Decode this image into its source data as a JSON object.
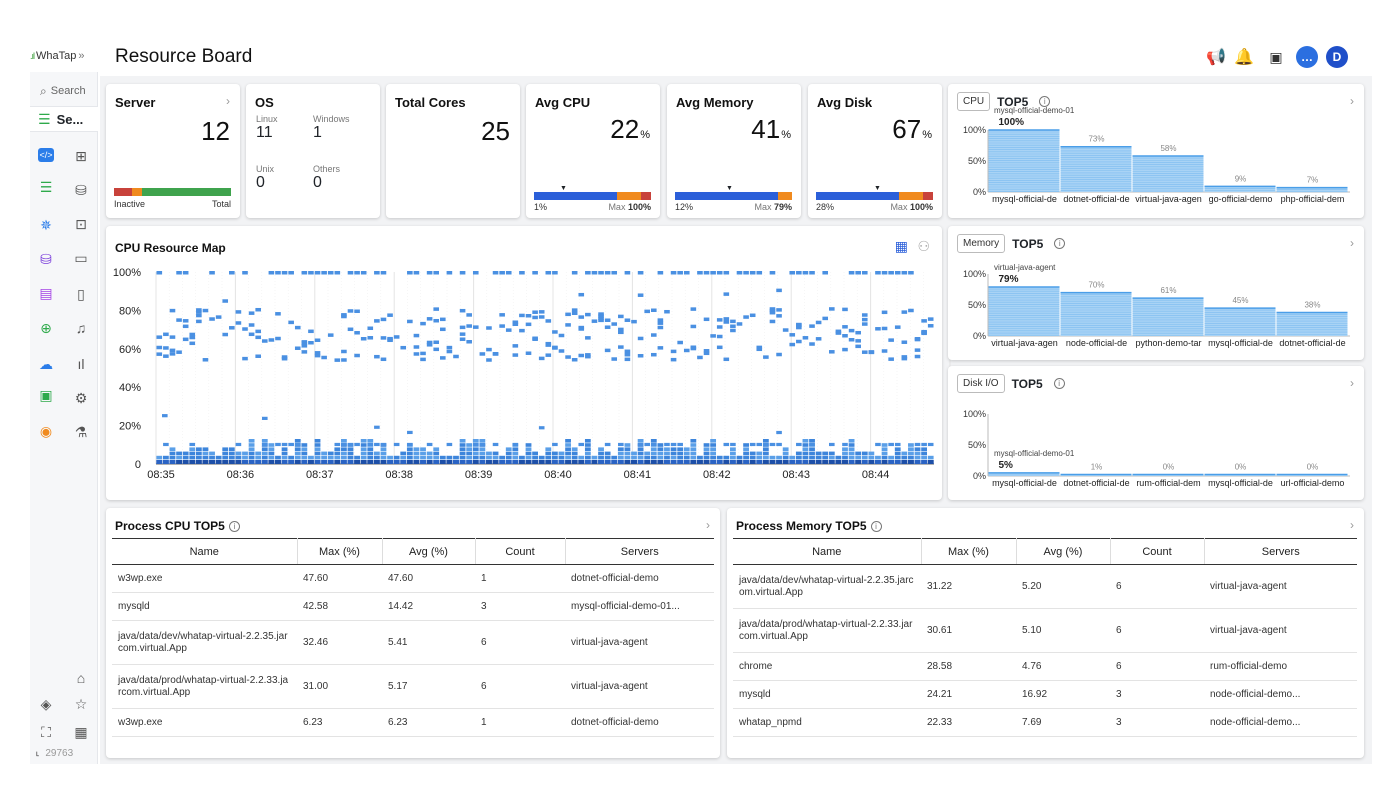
{
  "app": {
    "brand": "WhaTap",
    "collapse_icon": "double-chevron-right",
    "page_title": "Resource Board"
  },
  "sidebar": {
    "search_label": "Search",
    "selected": "Se...",
    "left_icons": [
      "code-icon",
      "server-icon",
      "kubernetes-icon",
      "database-icon",
      "document-icon",
      "globe-icon",
      "cloud-icon",
      "calendar-icon",
      "radio-icon"
    ],
    "right_icons": [
      "grid-icon",
      "database-outline-icon",
      "chart-box-icon",
      "clipboard-icon",
      "file-icon",
      "bell-icon",
      "bar-chart-icon",
      "settings-icon",
      "flask-icon"
    ],
    "bottom_right_icons": [
      "home-icon",
      "star-icon",
      "report-icon"
    ],
    "bottom_left_icons": [
      "paint-bucket-icon",
      "fullscreen-icon"
    ],
    "footer_id": "29763"
  },
  "topbar": {
    "icons": [
      "megaphone-icon",
      "bell-icon",
      "calendar-icon",
      "chat-icon"
    ],
    "avatar_letter": "D"
  },
  "summary": {
    "server": {
      "title": "Server",
      "value": "12",
      "inactive_label": "Inactive",
      "total_label": "Total"
    },
    "os": {
      "title": "OS",
      "linux_label": "Linux",
      "linux": "11",
      "windows_label": "Windows",
      "windows": "1",
      "unix_label": "Unix",
      "unix": "0",
      "others_label": "Others",
      "others": "0"
    },
    "cores": {
      "title": "Total Cores",
      "value": "25"
    },
    "cpu": {
      "title": "Avg CPU",
      "value": "22",
      "unit": "%",
      "min": "1%",
      "max_label": "Max",
      "max": "100%"
    },
    "memory": {
      "title": "Avg Memory",
      "value": "41",
      "unit": "%",
      "min": "12%",
      "max_label": "Max",
      "max": "79%"
    },
    "disk": {
      "title": "Avg Disk",
      "value": "67",
      "unit": "%",
      "min": "28%",
      "max_label": "Max",
      "max": "100%"
    }
  },
  "resource_map": {
    "title": "CPU Resource Map",
    "y_ticks": [
      "100%",
      "80%",
      "60%",
      "40%",
      "20%",
      "0"
    ],
    "x_ticks": [
      "08:35",
      "08:36",
      "08:37",
      "08:38",
      "08:39",
      "08:40",
      "08:41",
      "08:42",
      "08:43",
      "08:44"
    ]
  },
  "top5": [
    {
      "tag": "CPU",
      "title": "TOP5",
      "y_ticks": [
        "100%",
        "50%",
        "0%"
      ],
      "chart_data": {
        "type": "bar",
        "categories": [
          "mysql-official-de",
          "dotnet-official-de",
          "virtual-java-agen",
          "go-official-demo",
          "php-official-dem"
        ],
        "values": [
          100,
          73,
          58,
          9,
          7
        ],
        "labels": [
          "100%",
          "73%",
          "58%",
          "9%",
          "7%"
        ],
        "top_name": "mysql-official-demo-01"
      }
    },
    {
      "tag": "Memory",
      "title": "TOP5",
      "y_ticks": [
        "100%",
        "50%",
        "0%"
      ],
      "chart_data": {
        "type": "bar",
        "categories": [
          "virtual-java-agen",
          "node-official-de",
          "python-demo-tar",
          "mysql-official-de",
          "dotnet-official-de"
        ],
        "values": [
          79,
          70,
          61,
          45,
          38
        ],
        "labels": [
          "79%",
          "70%",
          "61%",
          "45%",
          "38%"
        ],
        "top_name": "virtual-java-agent"
      }
    },
    {
      "tag": "Disk I/O",
      "title": "TOP5",
      "y_ticks": [
        "100%",
        "50%",
        "0%"
      ],
      "chart_data": {
        "type": "bar",
        "categories": [
          "mysql-official-de",
          "dotnet-official-de",
          "rum-official-dem",
          "mysql-official-de",
          "url-official-demo"
        ],
        "values": [
          5,
          1,
          0,
          0,
          0
        ],
        "labels": [
          "5%",
          "1%",
          "0%",
          "0%",
          "0%"
        ],
        "top_name": "mysql-official-demo-01"
      }
    }
  ],
  "process_cpu": {
    "title": "Process CPU TOP5",
    "headers": [
      "Name",
      "Max (%)",
      "Avg (%)",
      "Count",
      "Servers"
    ],
    "rows": [
      [
        "w3wp.exe",
        "47.60",
        "47.60",
        "1",
        "dotnet-official-demo"
      ],
      [
        "mysqld",
        "42.58",
        "14.42",
        "3",
        "mysql-official-demo-01..."
      ],
      [
        "java/data/dev/whatap-virtual-2.2.35.jarcom.virtual.App",
        "32.46",
        "5.41",
        "6",
        "virtual-java-agent"
      ],
      [
        "java/data/prod/whatap-virtual-2.2.33.jarcom.virtual.App",
        "31.00",
        "5.17",
        "6",
        "virtual-java-agent"
      ],
      [
        "w3wp.exe",
        "6.23",
        "6.23",
        "1",
        "dotnet-official-demo"
      ]
    ]
  },
  "process_mem": {
    "title": "Process Memory TOP5",
    "headers": [
      "Name",
      "Max (%)",
      "Avg (%)",
      "Count",
      "Servers"
    ],
    "rows": [
      [
        "java/data/dev/whatap-virtual-2.2.35.jarcom.virtual.App",
        "31.22",
        "5.20",
        "6",
        "virtual-java-agent"
      ],
      [
        "java/data/prod/whatap-virtual-2.2.33.jarcom.virtual.App",
        "30.61",
        "5.10",
        "6",
        "virtual-java-agent"
      ],
      [
        "chrome",
        "28.58",
        "4.76",
        "6",
        "rum-official-demo"
      ],
      [
        "mysqld",
        "24.21",
        "16.92",
        "3",
        "node-official-demo..."
      ],
      [
        "whatap_npmd",
        "22.33",
        "7.69",
        "3",
        "node-official-demo..."
      ]
    ]
  }
}
